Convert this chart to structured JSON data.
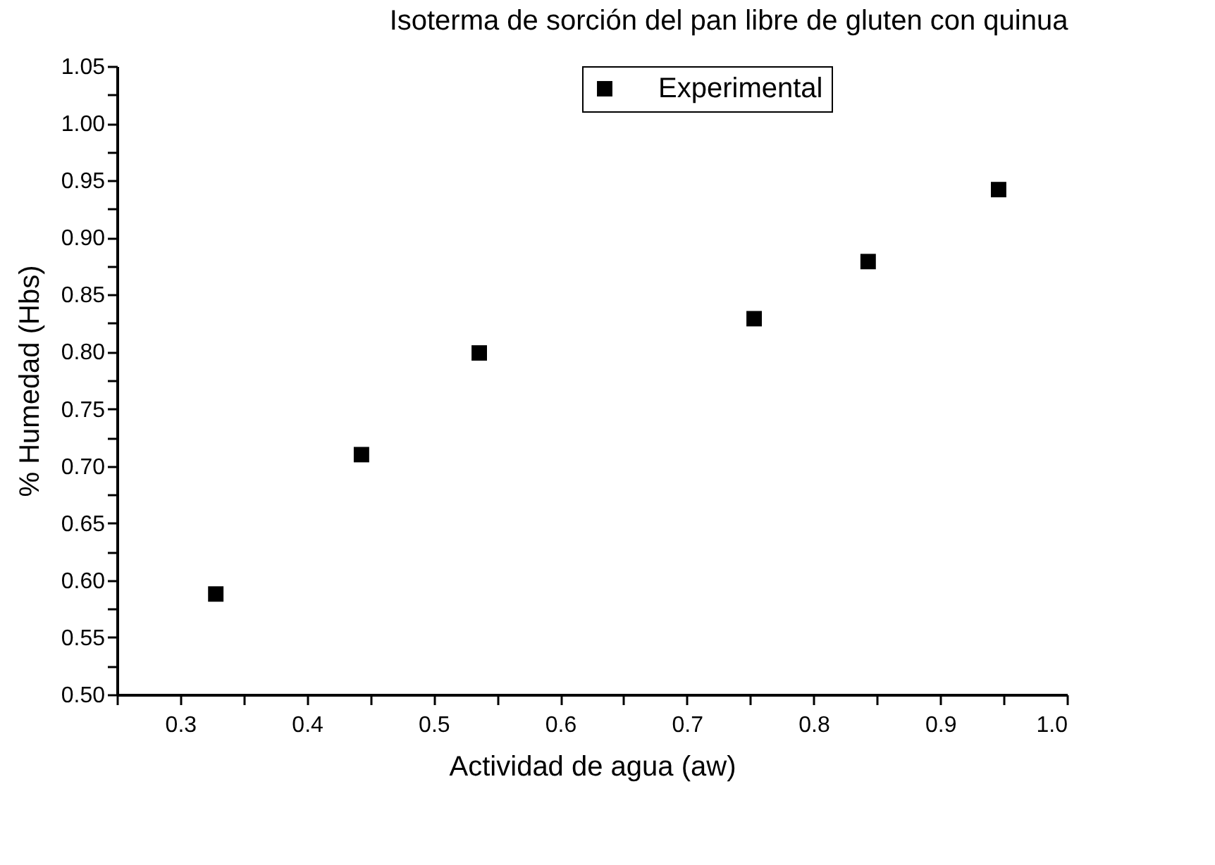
{
  "chart_data": {
    "type": "scatter",
    "title": "Isoterma de sorción del pan libre de gluten con quinua",
    "xlabel": "Actividad de agua (aw)",
    "ylabel": "% Humedad (Hbs)",
    "x": [
      0.328,
      0.443,
      0.536,
      0.753,
      0.843,
      0.946
    ],
    "series": [
      {
        "name": "Experimental",
        "color": "#000000",
        "values": [
          0.588,
          0.71,
          0.799,
          0.829,
          0.879,
          0.942
        ]
      }
    ],
    "xlim": [
      0.25,
      1.0
    ],
    "xticks": [
      {
        "value": 0.25,
        "label": null
      },
      0.3,
      {
        "value": 0.35,
        "label": null
      },
      0.4,
      {
        "value": 0.45,
        "label": null
      },
      0.5,
      {
        "value": 0.55,
        "label": null
      },
      0.6,
      {
        "value": 0.65,
        "label": null
      },
      0.7,
      {
        "value": 0.75,
        "label": null
      },
      0.8,
      {
        "value": 0.85,
        "label": null
      },
      0.9,
      {
        "value": 0.95,
        "label": null
      },
      {
        "value": 1.0,
        "label": "1.0"
      }
    ],
    "ylim": [
      0.5,
      1.05
    ],
    "yticks": [
      {
        "value": 0.5,
        "label": "0.50"
      },
      {
        "value": 0.525,
        "label": null
      },
      {
        "value": 0.55,
        "label": "0.55"
      },
      {
        "value": 0.575,
        "label": null
      },
      {
        "value": 0.6,
        "label": "0.60"
      },
      {
        "value": 0.625,
        "label": null
      },
      {
        "value": 0.65,
        "label": "0.65"
      },
      {
        "value": 0.675,
        "label": null
      },
      {
        "value": 0.7,
        "label": "0.70"
      },
      {
        "value": 0.725,
        "label": null
      },
      {
        "value": 0.75,
        "label": "0.75"
      },
      {
        "value": 0.775,
        "label": null
      },
      {
        "value": 0.8,
        "label": "0.80"
      },
      {
        "value": 0.825,
        "label": null
      },
      {
        "value": 0.85,
        "label": "0.85"
      },
      {
        "value": 0.875,
        "label": null
      },
      {
        "value": 0.9,
        "label": "0.90"
      },
      {
        "value": 0.925,
        "label": null
      },
      {
        "value": 0.95,
        "label": "0.95"
      },
      {
        "value": 0.975,
        "label": null
      },
      {
        "value": 1.0,
        "label": "1.00"
      },
      {
        "value": 1.025,
        "label": null
      },
      {
        "value": 1.05,
        "label": "1.05"
      }
    ],
    "grid": false,
    "legend": "top",
    "marker": "square"
  }
}
